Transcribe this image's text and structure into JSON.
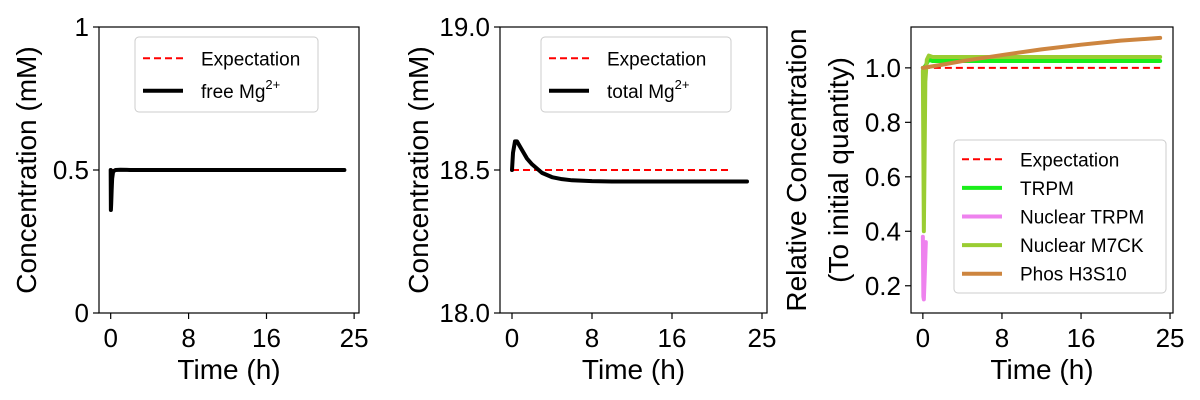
{
  "chart_data": [
    {
      "type": "line",
      "xlabel": "Time (h)",
      "ylabel": "Concentration (mM)",
      "xlim": [
        -1.2,
        25.5
      ],
      "ylim": [
        0,
        1
      ],
      "xticks": [
        0,
        8,
        16,
        25
      ],
      "yticks": [
        0,
        0.5,
        1
      ],
      "ytick_labels": [
        "0",
        "0.5",
        "1"
      ],
      "grid": false,
      "legend": "top-center",
      "series": [
        {
          "name": "Expectation",
          "style": "dashed",
          "color": "#ff0000",
          "x": [
            0,
            24
          ],
          "y": [
            0.5,
            0.5
          ]
        },
        {
          "name": "free Mg",
          "superscript": "2+",
          "style": "solid",
          "color": "#000000",
          "x": [
            0,
            0.02,
            0.05,
            0.1,
            0.15,
            0.25,
            0.5,
            1,
            2,
            24
          ],
          "y": [
            0.5,
            0.36,
            0.38,
            0.43,
            0.47,
            0.495,
            0.5,
            0.501,
            0.5,
            0.5
          ]
        }
      ]
    },
    {
      "type": "line",
      "xlabel": "Time (h)",
      "ylabel": "Concentration (mM)",
      "xlim": [
        -1.2,
        25.5
      ],
      "ylim": [
        18.0,
        19.0
      ],
      "xticks": [
        0,
        8,
        16,
        25
      ],
      "yticks": [
        18.0,
        18.5,
        19.0
      ],
      "ytick_labels": [
        "18.0",
        "18.5",
        "19.0"
      ],
      "grid": false,
      "legend": "top-center",
      "series": [
        {
          "name": "Expectation",
          "style": "dashed",
          "color": "#ff0000",
          "x": [
            0,
            22
          ],
          "y": [
            18.5,
            18.5
          ]
        },
        {
          "name": "total Mg",
          "superscript": "2+",
          "style": "solid",
          "color": "#000000",
          "x": [
            0,
            0.1,
            0.3,
            0.5,
            1,
            1.5,
            2,
            3,
            4,
            5,
            6,
            8,
            10,
            12,
            16,
            20,
            23.5
          ],
          "y": [
            18.5,
            18.56,
            18.6,
            18.6,
            18.57,
            18.54,
            18.52,
            18.49,
            18.475,
            18.468,
            18.464,
            18.461,
            18.46,
            18.46,
            18.46,
            18.46,
            18.46
          ]
        }
      ]
    },
    {
      "type": "line",
      "xlabel": "Time (h)",
      "ylabel": "Relative Concentration",
      "ylabel2": "(To initial quantity)",
      "xlim": [
        -1.2,
        25.3
      ],
      "ylim": [
        0.1,
        1.15
      ],
      "xticks": [
        0,
        8,
        16,
        25
      ],
      "yticks": [
        0.2,
        0.4,
        0.6,
        0.8,
        1.0
      ],
      "ytick_labels": [
        "0.2",
        "0.4",
        "0.6",
        "0.8",
        "1.0"
      ],
      "grid": false,
      "legend": "bottom-right",
      "series": [
        {
          "name": "Expectation",
          "style": "dashed",
          "color": "#ff0000",
          "x": [
            0,
            24
          ],
          "y": [
            1.0,
            1.0
          ]
        },
        {
          "name": "TRPM",
          "style": "solid",
          "color": "#1aee1a",
          "x": [
            0,
            0.1,
            0.3,
            0.6,
            1,
            24
          ],
          "y": [
            1.0,
            1.0,
            1.01,
            1.03,
            1.025,
            1.025
          ]
        },
        {
          "name": "Nuclear TRPM",
          "style": "solid",
          "color": "#ee82ee",
          "x": [
            0,
            0.05,
            0.1,
            0.2,
            0.3
          ],
          "y": [
            0.38,
            0.16,
            0.15,
            0.25,
            0.36
          ]
        },
        {
          "name": "Nuclear M7CK",
          "style": "solid",
          "color": "#9acd32",
          "x": [
            0,
            0.1,
            0.25,
            0.4,
            0.6,
            1,
            24
          ],
          "y": [
            0.99,
            0.4,
            0.95,
            1.03,
            1.045,
            1.04,
            1.04
          ]
        },
        {
          "name": "Phos H3S10",
          "style": "solid",
          "color": "#cd853f",
          "x": [
            0,
            2,
            4,
            8,
            12,
            16,
            20,
            24
          ],
          "y": [
            1.0,
            1.012,
            1.025,
            1.047,
            1.068,
            1.085,
            1.1,
            1.11
          ]
        }
      ]
    }
  ]
}
